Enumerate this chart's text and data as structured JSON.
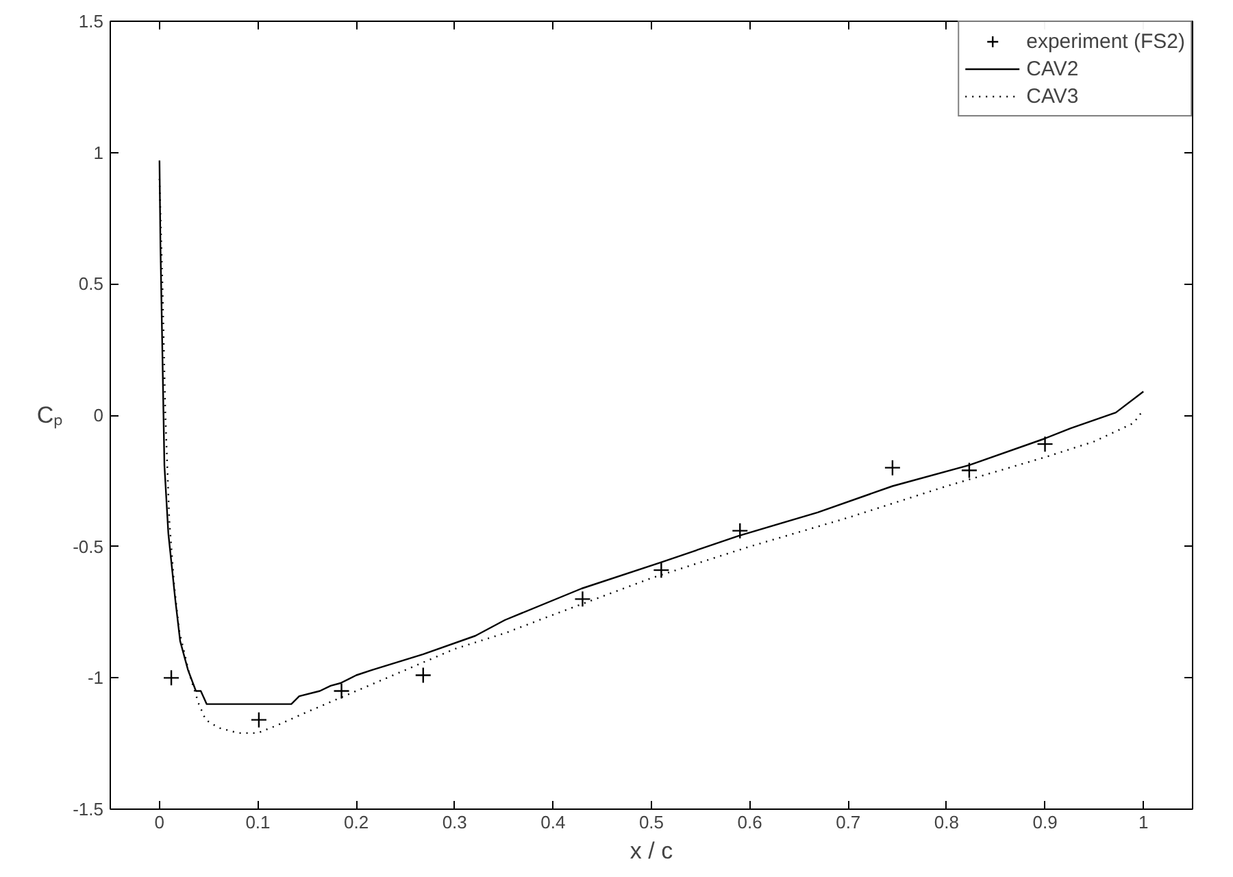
{
  "chart_data": {
    "type": "line",
    "xlabel": "x / c",
    "ylabel": "Cₚ",
    "xlim": [
      -0.05,
      1.05
    ],
    "ylim": [
      -1.5,
      1.5
    ],
    "xticks": [
      0,
      0.1,
      0.2,
      0.3,
      0.4,
      0.5,
      0.6,
      0.7,
      0.8,
      0.9,
      1
    ],
    "yticks": [
      -1.5,
      -1,
      -0.5,
      0,
      0.5,
      1,
      1.5
    ],
    "grid": false,
    "legend": "top right",
    "series": [
      {
        "name": "experiment (FS2)",
        "type": "scatter",
        "marker": "cross",
        "color": "#000000",
        "x": [
          0.012,
          0.101,
          0.185,
          0.268,
          0.43,
          0.51,
          0.59,
          0.745,
          0.823,
          0.9
        ],
        "values": [
          -1.0,
          -1.16,
          -1.05,
          -0.99,
          -0.7,
          -0.59,
          -0.44,
          -0.2,
          -0.21,
          -0.11
        ]
      },
      {
        "name": "CAV2",
        "line_style": "solid",
        "color": "#000000",
        "x": [
          0,
          0.001,
          0.003,
          0.005,
          0.009,
          0.016,
          0.021,
          0.029,
          0.037,
          0.042,
          0.048,
          0.134,
          0.142,
          0.163,
          0.174,
          0.184,
          0.2,
          0.216,
          0.242,
          0.268,
          0.321,
          0.351,
          0.429,
          0.51,
          0.588,
          0.669,
          0.745,
          0.823,
          0.899,
          0.926,
          0.972,
          1.0
        ],
        "values": [
          0.97,
          0.64,
          0.23,
          -0.19,
          -0.45,
          -0.7,
          -0.86,
          -0.97,
          -1.05,
          -1.05,
          -1.1,
          -1.1,
          -1.07,
          -1.05,
          -1.03,
          -1.02,
          -0.99,
          -0.97,
          -0.94,
          -0.91,
          -0.84,
          -0.78,
          -0.66,
          -0.56,
          -0.46,
          -0.37,
          -0.27,
          -0.19,
          -0.09,
          -0.05,
          0.01,
          0.09
        ]
      },
      {
        "name": "CAV3",
        "line_style": "dotted",
        "color": "#000000",
        "x": [
          0,
          0.003,
          0.006,
          0.01,
          0.015,
          0.02,
          0.03,
          0.04,
          0.047,
          0.06,
          0.08,
          0.1,
          0.12,
          0.15,
          0.2,
          0.3,
          0.351,
          0.4,
          0.5,
          0.6,
          0.7,
          0.8,
          0.9,
          0.95,
          0.99,
          1.0
        ],
        "values": [
          0.9,
          0.5,
          0.0,
          -0.4,
          -0.65,
          -0.82,
          -0.98,
          -1.1,
          -1.16,
          -1.19,
          -1.21,
          -1.21,
          -1.18,
          -1.13,
          -1.05,
          -0.89,
          -0.83,
          -0.76,
          -0.62,
          -0.5,
          -0.39,
          -0.27,
          -0.16,
          -0.1,
          -0.03,
          0.02
        ]
      }
    ]
  }
}
